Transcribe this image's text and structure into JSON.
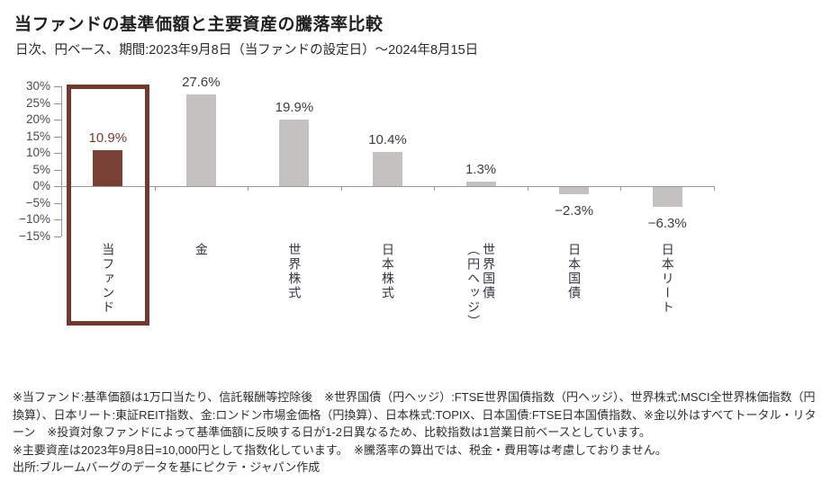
{
  "page": {
    "title": "当ファンドの基準価額と主要資産の騰落率比較",
    "subtitle": "日次、円ベース、期間:2023年9月8日（当ファンドの設定日）～2024年8月15日"
  },
  "chart_data": {
    "type": "bar",
    "title": "当ファンドの基準価額と主要資産の騰落率比較",
    "subtitle": "日次、円ベース、期間:2023年9月8日（当ファンドの設定日）～2024年8月15日",
    "categories": [
      "当ファンド",
      "金",
      "世界株式",
      "日本株式",
      "世界国債\n（円ヘッジ）",
      "日本国債",
      "日本リート"
    ],
    "values": [
      10.9,
      27.6,
      19.9,
      10.4,
      1.3,
      -2.3,
      -6.3
    ],
    "value_labels": [
      "10.9%",
      "27.6%",
      "19.9%",
      "10.4%",
      "1.3%",
      "−2.3%",
      "−6.3%"
    ],
    "ylabel": "",
    "xlabel": "",
    "ylim": [
      -15,
      30
    ],
    "ytick_values": [
      30,
      25,
      20,
      15,
      10,
      5,
      0,
      -5,
      -10,
      -15
    ],
    "ytick_labels": [
      "30%",
      "25%",
      "20%",
      "15%",
      "10%",
      "5%",
      "0%",
      "−5%",
      "−10%",
      "−15%"
    ],
    "grid": false,
    "legend": false,
    "highlight_index": 0,
    "colors": {
      "bar": "#c3c2c0",
      "highlight_bar": "#7a4136",
      "highlight_text": "#7b3a30",
      "label_text": "#3d3d3d",
      "axis": "#9a9a9a",
      "tick_text": "#4c4c4c",
      "category_text": "#333340",
      "highlight_box_border": "#6f3b2f"
    }
  },
  "footnotes": [
    "※当ファンド:基準価額は1万口当たり、信託報酬等控除後　※世界国債（円ヘッジ）:FTSE世界国債指数（円ヘッジ）、世界株式:MSCI全世界株価指数（円換算）、日本リート:東証REIT指数、金:ロンドン市場金価格（円換算）、日本株式:TOPIX、日本国債:FTSE日本国債指数、※金以外はすべてトータル・リターン　※投資対象ファンドによって基準価額に反映する日が1-2日異なるため、比較指数は1営業日前ベースとしています。",
    "※主要資産は2023年9月8日=10,000円として指数化しています。　※騰落率の算出では、税金・費用等は考慮しておりません。",
    "出所:ブルームバーグのデータを基にピクテ・ジャパン作成"
  ]
}
